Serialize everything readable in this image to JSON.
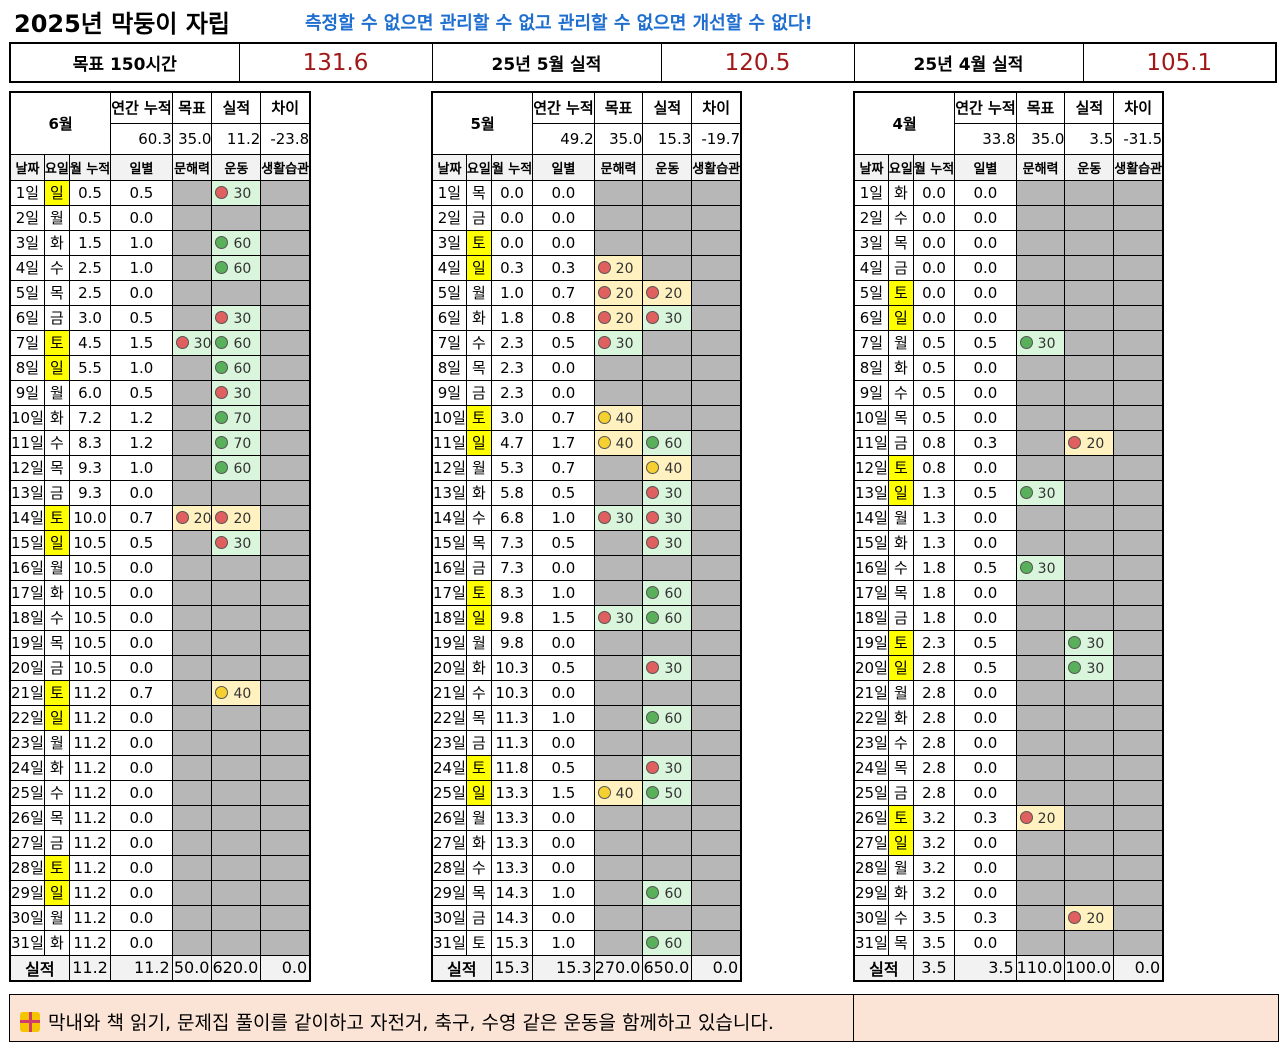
{
  "header": {
    "title": "2025년 막둥이 자립",
    "slogan": "측정할 수 없으면 관리할 수 없고 관리할 수 없으면 개선할 수 없다!"
  },
  "summary": [
    {
      "label": "목표 150시간",
      "value": "131.6"
    },
    {
      "label": "25년 5월 실적",
      "value": "120.5"
    },
    {
      "label": "25년 4월 실적",
      "value": "105.1"
    }
  ],
  "columns": {
    "date": "날짜",
    "weekday": "요일",
    "cumulative": "월 누적",
    "daily": "일별",
    "literacy": "문해력",
    "exercise": "운동",
    "habits": "생활습관",
    "annual": "연간 누적",
    "goal": "목표",
    "actual": "실적",
    "diff": "차이",
    "total_label": "실적"
  },
  "months": [
    {
      "name": "6월",
      "stats": {
        "annual": "60.3",
        "goal": "35.0",
        "actual": "11.2",
        "diff": "-23.8"
      },
      "totals": {
        "cum": "11.2",
        "daily": "11.2",
        "literacy": "50.0",
        "exercise": "620.0",
        "habits": "0.0"
      },
      "days": [
        {
          "d": "1일",
          "w": "일",
          "h": true,
          "c": "0.5",
          "v": "0.5",
          "ex": [
            "r",
            "30"
          ]
        },
        {
          "d": "2일",
          "w": "월",
          "c": "0.5",
          "v": "0.0"
        },
        {
          "d": "3일",
          "w": "화",
          "c": "1.5",
          "v": "1.0",
          "ex": [
            "g",
            "60"
          ]
        },
        {
          "d": "4일",
          "w": "수",
          "c": "2.5",
          "v": "1.0",
          "ex": [
            "g",
            "60"
          ]
        },
        {
          "d": "5일",
          "w": "목",
          "c": "2.5",
          "v": "0.0"
        },
        {
          "d": "6일",
          "w": "금",
          "c": "3.0",
          "v": "0.5",
          "ex": [
            "r",
            "30"
          ]
        },
        {
          "d": "7일",
          "w": "토",
          "h": true,
          "c": "4.5",
          "v": "1.5",
          "lit": [
            "r",
            "30"
          ],
          "ex": [
            "g",
            "60"
          ]
        },
        {
          "d": "8일",
          "w": "일",
          "h": true,
          "c": "5.5",
          "v": "1.0",
          "ex": [
            "g",
            "60"
          ]
        },
        {
          "d": "9일",
          "w": "월",
          "c": "6.0",
          "v": "0.5",
          "ex": [
            "r",
            "30"
          ]
        },
        {
          "d": "10일",
          "w": "화",
          "c": "7.2",
          "v": "1.2",
          "ex": [
            "g",
            "70"
          ]
        },
        {
          "d": "11일",
          "w": "수",
          "c": "8.3",
          "v": "1.2",
          "ex": [
            "g",
            "70"
          ]
        },
        {
          "d": "12일",
          "w": "목",
          "c": "9.3",
          "v": "1.0",
          "ex": [
            "g",
            "60"
          ]
        },
        {
          "d": "13일",
          "w": "금",
          "c": "9.3",
          "v": "0.0"
        },
        {
          "d": "14일",
          "w": "토",
          "h": true,
          "c": "10.0",
          "v": "0.7",
          "lit": [
            "r",
            "20",
            "y"
          ],
          "ex": [
            "r",
            "20",
            "y"
          ]
        },
        {
          "d": "15일",
          "w": "일",
          "h": true,
          "c": "10.5",
          "v": "0.5",
          "ex": [
            "r",
            "30"
          ]
        },
        {
          "d": "16일",
          "w": "월",
          "c": "10.5",
          "v": "0.0"
        },
        {
          "d": "17일",
          "w": "화",
          "c": "10.5",
          "v": "0.0"
        },
        {
          "d": "18일",
          "w": "수",
          "c": "10.5",
          "v": "0.0"
        },
        {
          "d": "19일",
          "w": "목",
          "c": "10.5",
          "v": "0.0"
        },
        {
          "d": "20일",
          "w": "금",
          "c": "10.5",
          "v": "0.0"
        },
        {
          "d": "21일",
          "w": "토",
          "h": true,
          "c": "11.2",
          "v": "0.7",
          "ex": [
            "y",
            "40"
          ]
        },
        {
          "d": "22일",
          "w": "일",
          "h": true,
          "c": "11.2",
          "v": "0.0"
        },
        {
          "d": "23일",
          "w": "월",
          "c": "11.2",
          "v": "0.0"
        },
        {
          "d": "24일",
          "w": "화",
          "c": "11.2",
          "v": "0.0"
        },
        {
          "d": "25일",
          "w": "수",
          "c": "11.2",
          "v": "0.0"
        },
        {
          "d": "26일",
          "w": "목",
          "c": "11.2",
          "v": "0.0"
        },
        {
          "d": "27일",
          "w": "금",
          "c": "11.2",
          "v": "0.0"
        },
        {
          "d": "28일",
          "w": "토",
          "h": true,
          "c": "11.2",
          "v": "0.0"
        },
        {
          "d": "29일",
          "w": "일",
          "h": true,
          "c": "11.2",
          "v": "0.0"
        },
        {
          "d": "30일",
          "w": "월",
          "c": "11.2",
          "v": "0.0"
        },
        {
          "d": "31일",
          "w": "화",
          "c": "11.2",
          "v": "0.0"
        }
      ]
    },
    {
      "name": "5월",
      "stats": {
        "annual": "49.2",
        "goal": "35.0",
        "actual": "15.3",
        "diff": "-19.7"
      },
      "totals": {
        "cum": "15.3",
        "daily": "15.3",
        "literacy": "270.0",
        "exercise": "650.0",
        "habits": "0.0"
      },
      "days": [
        {
          "d": "1일",
          "w": "목",
          "c": "0.0",
          "v": "0.0"
        },
        {
          "d": "2일",
          "w": "금",
          "c": "0.0",
          "v": "0.0"
        },
        {
          "d": "3일",
          "w": "토",
          "h": true,
          "c": "0.0",
          "v": "0.0"
        },
        {
          "d": "4일",
          "w": "일",
          "h": true,
          "c": "0.3",
          "v": "0.3",
          "lit": [
            "r",
            "20",
            "y"
          ]
        },
        {
          "d": "5일",
          "w": "월",
          "c": "1.0",
          "v": "0.7",
          "lit": [
            "r",
            "20",
            "y"
          ],
          "ex": [
            "r",
            "20",
            "y"
          ]
        },
        {
          "d": "6일",
          "w": "화",
          "c": "1.8",
          "v": "0.8",
          "lit": [
            "r",
            "20",
            "y"
          ],
          "ex": [
            "r",
            "30"
          ]
        },
        {
          "d": "7일",
          "w": "수",
          "c": "2.3",
          "v": "0.5",
          "lit": [
            "r",
            "30"
          ]
        },
        {
          "d": "8일",
          "w": "목",
          "c": "2.3",
          "v": "0.0"
        },
        {
          "d": "9일",
          "w": "금",
          "c": "2.3",
          "v": "0.0"
        },
        {
          "d": "10일",
          "w": "토",
          "h": true,
          "c": "3.0",
          "v": "0.7",
          "lit": [
            "y",
            "40"
          ]
        },
        {
          "d": "11일",
          "w": "일",
          "h": true,
          "c": "4.7",
          "v": "1.7",
          "lit": [
            "y",
            "40"
          ],
          "ex": [
            "g",
            "60"
          ]
        },
        {
          "d": "12일",
          "w": "월",
          "c": "5.3",
          "v": "0.7",
          "ex": [
            "y",
            "40"
          ]
        },
        {
          "d": "13일",
          "w": "화",
          "c": "5.8",
          "v": "0.5",
          "ex": [
            "r",
            "30"
          ]
        },
        {
          "d": "14일",
          "w": "수",
          "c": "6.8",
          "v": "1.0",
          "lit": [
            "r",
            "30"
          ],
          "ex": [
            "r",
            "30"
          ]
        },
        {
          "d": "15일",
          "w": "목",
          "c": "7.3",
          "v": "0.5",
          "ex": [
            "r",
            "30"
          ]
        },
        {
          "d": "16일",
          "w": "금",
          "c": "7.3",
          "v": "0.0"
        },
        {
          "d": "17일",
          "w": "토",
          "h": true,
          "c": "8.3",
          "v": "1.0",
          "ex": [
            "g",
            "60"
          ]
        },
        {
          "d": "18일",
          "w": "일",
          "h": true,
          "c": "9.8",
          "v": "1.5",
          "lit": [
            "r",
            "30"
          ],
          "ex": [
            "g",
            "60"
          ]
        },
        {
          "d": "19일",
          "w": "월",
          "c": "9.8",
          "v": "0.0"
        },
        {
          "d": "20일",
          "w": "화",
          "c": "10.3",
          "v": "0.5",
          "ex": [
            "r",
            "30"
          ]
        },
        {
          "d": "21일",
          "w": "수",
          "c": "10.3",
          "v": "0.0"
        },
        {
          "d": "22일",
          "w": "목",
          "c": "11.3",
          "v": "1.0",
          "ex": [
            "g",
            "60"
          ]
        },
        {
          "d": "23일",
          "w": "금",
          "c": "11.3",
          "v": "0.0"
        },
        {
          "d": "24일",
          "w": "토",
          "h": true,
          "c": "11.8",
          "v": "0.5",
          "ex": [
            "r",
            "30"
          ]
        },
        {
          "d": "25일",
          "w": "일",
          "h": true,
          "c": "13.3",
          "v": "1.5",
          "lit": [
            "y",
            "40"
          ],
          "ex": [
            "g",
            "50"
          ]
        },
        {
          "d": "26일",
          "w": "월",
          "c": "13.3",
          "v": "0.0"
        },
        {
          "d": "27일",
          "w": "화",
          "c": "13.3",
          "v": "0.0"
        },
        {
          "d": "28일",
          "w": "수",
          "c": "13.3",
          "v": "0.0"
        },
        {
          "d": "29일",
          "w": "목",
          "c": "14.3",
          "v": "1.0",
          "ex": [
            "g",
            "60"
          ]
        },
        {
          "d": "30일",
          "w": "금",
          "c": "14.3",
          "v": "0.0"
        },
        {
          "d": "31일",
          "w": "토",
          "c": "15.3",
          "v": "1.0",
          "ex": [
            "g",
            "60"
          ]
        }
      ]
    },
    {
      "name": "4월",
      "stats": {
        "annual": "33.8",
        "goal": "35.0",
        "actual": "3.5",
        "diff": "-31.5"
      },
      "totals": {
        "cum": "3.5",
        "daily": "3.5",
        "literacy": "110.0",
        "exercise": "100.0",
        "habits": "0.0"
      },
      "days": [
        {
          "d": "1일",
          "w": "화",
          "c": "0.0",
          "v": "0.0"
        },
        {
          "d": "2일",
          "w": "수",
          "c": "0.0",
          "v": "0.0"
        },
        {
          "d": "3일",
          "w": "목",
          "c": "0.0",
          "v": "0.0"
        },
        {
          "d": "4일",
          "w": "금",
          "c": "0.0",
          "v": "0.0"
        },
        {
          "d": "5일",
          "w": "토",
          "h": true,
          "c": "0.0",
          "v": "0.0"
        },
        {
          "d": "6일",
          "w": "일",
          "h": true,
          "c": "0.0",
          "v": "0.0"
        },
        {
          "d": "7일",
          "w": "월",
          "c": "0.5",
          "v": "0.5",
          "lit": [
            "g",
            "30"
          ]
        },
        {
          "d": "8일",
          "w": "화",
          "c": "0.5",
          "v": "0.0"
        },
        {
          "d": "9일",
          "w": "수",
          "c": "0.5",
          "v": "0.0"
        },
        {
          "d": "10일",
          "w": "목",
          "c": "0.5",
          "v": "0.0"
        },
        {
          "d": "11일",
          "w": "금",
          "c": "0.8",
          "v": "0.3",
          "ex": [
            "r",
            "20",
            "y"
          ]
        },
        {
          "d": "12일",
          "w": "토",
          "h": true,
          "c": "0.8",
          "v": "0.0"
        },
        {
          "d": "13일",
          "w": "일",
          "h": true,
          "c": "1.3",
          "v": "0.5",
          "lit": [
            "g",
            "30"
          ]
        },
        {
          "d": "14일",
          "w": "월",
          "c": "1.3",
          "v": "0.0"
        },
        {
          "d": "15일",
          "w": "화",
          "c": "1.3",
          "v": "0.0"
        },
        {
          "d": "16일",
          "w": "수",
          "c": "1.8",
          "v": "0.5",
          "lit": [
            "g",
            "30"
          ]
        },
        {
          "d": "17일",
          "w": "목",
          "c": "1.8",
          "v": "0.0"
        },
        {
          "d": "18일",
          "w": "금",
          "c": "1.8",
          "v": "0.0"
        },
        {
          "d": "19일",
          "w": "토",
          "h": true,
          "c": "2.3",
          "v": "0.5",
          "ex": [
            "g",
            "30"
          ]
        },
        {
          "d": "20일",
          "w": "일",
          "h": true,
          "c": "2.8",
          "v": "0.5",
          "ex": [
            "g",
            "30"
          ]
        },
        {
          "d": "21일",
          "w": "월",
          "c": "2.8",
          "v": "0.0"
        },
        {
          "d": "22일",
          "w": "화",
          "c": "2.8",
          "v": "0.0"
        },
        {
          "d": "23일",
          "w": "수",
          "c": "2.8",
          "v": "0.0"
        },
        {
          "d": "24일",
          "w": "목",
          "c": "2.8",
          "v": "0.0"
        },
        {
          "d": "25일",
          "w": "금",
          "c": "2.8",
          "v": "0.0"
        },
        {
          "d": "26일",
          "w": "토",
          "h": true,
          "c": "3.2",
          "v": "0.3",
          "lit": [
            "r",
            "20",
            "y"
          ]
        },
        {
          "d": "27일",
          "w": "일",
          "h": true,
          "c": "3.2",
          "v": "0.0"
        },
        {
          "d": "28일",
          "w": "월",
          "c": "3.2",
          "v": "0.0"
        },
        {
          "d": "29일",
          "w": "화",
          "c": "3.2",
          "v": "0.0"
        },
        {
          "d": "30일",
          "w": "수",
          "c": "3.5",
          "v": "0.3",
          "ex": [
            "r",
            "20",
            "y"
          ]
        },
        {
          "d": "31일",
          "w": "목",
          "c": "3.5",
          "v": "0.0"
        }
      ]
    }
  ],
  "footer": {
    "icon": "gift-icon",
    "text": "막내와 책 읽기, 문제집 풀이를 같이하고 자전거, 축구, 수영 같은 운동을 함께하고 있습니다."
  }
}
